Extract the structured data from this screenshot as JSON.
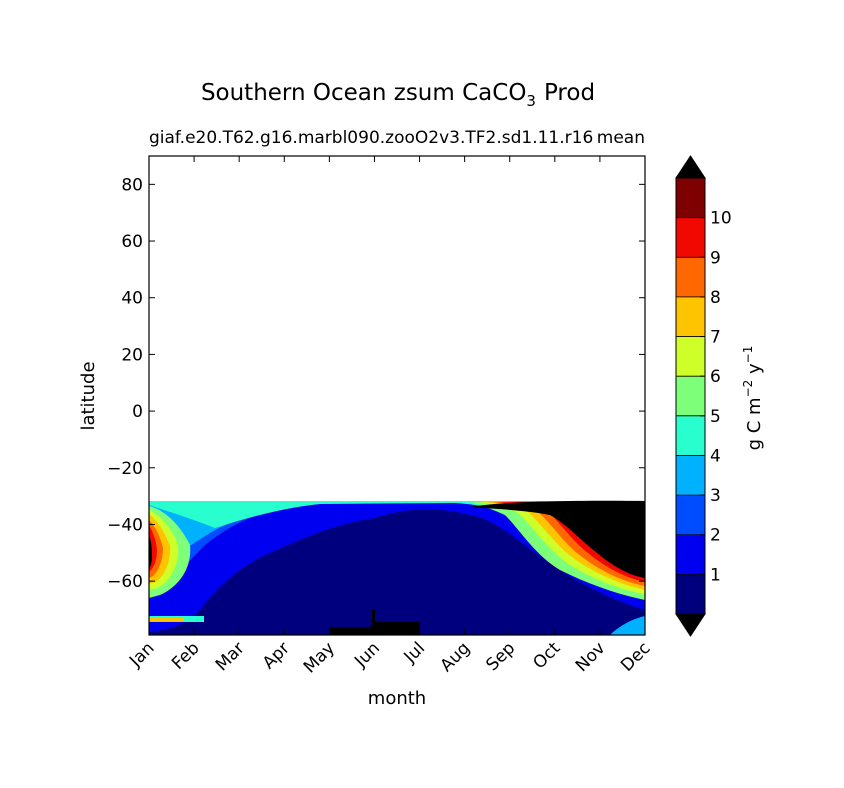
{
  "chart_data": {
    "type": "heatmap",
    "title": "Southern Ocean zsum CaCO",
    "title_subscript": "3",
    "title_suffix": "Prod",
    "subtitle_left": "giaf.e20.T62.g16.marbl090.zooO2v3.TF2.sd1.11.r16",
    "subtitle_right": "mean",
    "xlabel": "month",
    "ylabel": "latitude",
    "x_ticks": [
      "Jan",
      "Feb",
      "Mar",
      "Apr",
      "May",
      "Jun",
      "Jul",
      "Aug",
      "Sep",
      "Oct",
      "Nov",
      "Dec"
    ],
    "y_ticks": [
      80,
      60,
      40,
      20,
      0,
      -20,
      -40,
      -60
    ],
    "y_tick_labels": [
      "80",
      "60",
      "40",
      "20",
      "0",
      "−20",
      "−40",
      "−60"
    ],
    "ylim": [
      -79,
      90
    ],
    "data_ylim_top": -32,
    "colorbar": {
      "label_main": "g C m",
      "label_exp1": "−2",
      "label_mid": " y",
      "label_exp2": "−1",
      "levels": [
        0,
        1,
        2,
        3,
        4,
        5,
        6,
        7,
        8,
        9,
        10,
        11
      ],
      "tick_values": [
        1,
        2,
        3,
        4,
        5,
        6,
        7,
        8,
        9,
        10
      ],
      "tick_labels": [
        "1",
        "2",
        "3",
        "4",
        "5",
        "6",
        "7",
        "8",
        "9",
        "10"
      ],
      "colors": [
        "#00007f",
        "#0000f1",
        "#004dff",
        "#00b1ff",
        "#29ffce",
        "#7dff7a",
        "#ceff29",
        "#ffc400",
        "#ff6800",
        "#f10800",
        "#7f0000"
      ],
      "extend": "both",
      "under_color": "#000000",
      "over_color": "#000000"
    }
  }
}
